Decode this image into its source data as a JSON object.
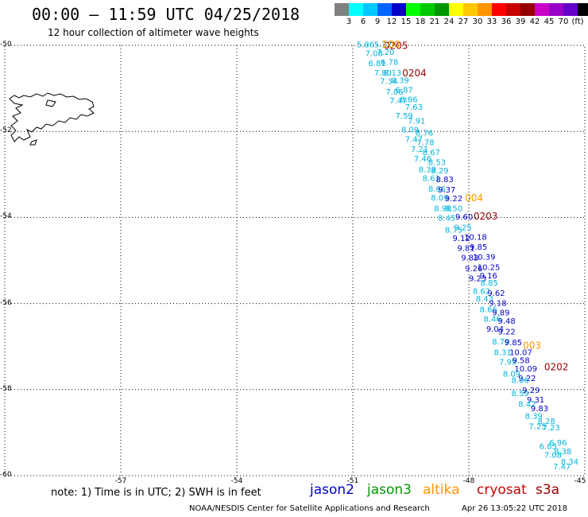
{
  "header": {
    "title": "00:00 – 11:59 UTC 04/25/2018",
    "subtitle": "12 hour collection of altimeter wave heights"
  },
  "legend": {
    "colors": [
      "#808080",
      "#00ffff",
      "#00c8ff",
      "#0064ff",
      "#0000c8",
      "#00ff00",
      "#00c800",
      "#009600",
      "#ffff00",
      "#ffc800",
      "#ff9600",
      "#ff0000",
      "#c80000",
      "#960000",
      "#c800c8",
      "#9600c8",
      "#6400c8",
      "#000000"
    ],
    "ticks": [
      "3",
      "6",
      "9",
      "12",
      "15",
      "18",
      "21",
      "24",
      "27",
      "30",
      "33",
      "36",
      "39",
      "42",
      "45",
      "70",
      "(ft)"
    ]
  },
  "axes": {
    "lat_labels": [
      "-50",
      "-52",
      "-54",
      "-56",
      "-58",
      "-60"
    ],
    "lon_labels": [
      "-57",
      "-54",
      "-51",
      "-48",
      "-45"
    ]
  },
  "map": {
    "lat_range": [
      -60,
      -50
    ],
    "lon_range": [
      -60,
      -45
    ],
    "gridlines": "dotted"
  },
  "observations": [
    {
      "t": "5.86",
      "lat": -50.05,
      "lon": -50.9,
      "c": "#00b4dc"
    },
    {
      "t": "5.32",
      "lat": -50.05,
      "lon": -50.45,
      "c": "#00b4dc"
    },
    {
      "t": "7.08",
      "lat": -50.25,
      "lon": -50.68,
      "c": "#00b4dc"
    },
    {
      "t": "7.20",
      "lat": -50.22,
      "lon": -50.38,
      "c": "#00b4dc"
    },
    {
      "t": "6.81",
      "lat": -50.48,
      "lon": -50.6,
      "c": "#00b4dc"
    },
    {
      "t": "6.78",
      "lat": -50.45,
      "lon": -50.28,
      "c": "#00b4dc"
    },
    {
      "t": "7.80",
      "lat": -50.7,
      "lon": -50.45,
      "c": "#00b4dc"
    },
    {
      "t": "8.13",
      "lat": -50.7,
      "lon": -50.2,
      "c": "#00b4dc"
    },
    {
      "t": "7.34",
      "lat": -50.9,
      "lon": -50.3,
      "c": "#00b4dc"
    },
    {
      "t": "8.39",
      "lat": -50.88,
      "lon": -50.0,
      "c": "#00b4dc"
    },
    {
      "t": "7.06",
      "lat": -51.15,
      "lon": -50.15,
      "c": "#00b4dc"
    },
    {
      "t": "6.87",
      "lat": -51.1,
      "lon": -49.9,
      "c": "#00b4dc"
    },
    {
      "t": "7.47",
      "lat": -51.35,
      "lon": -50.05,
      "c": "#00b4dc"
    },
    {
      "t": "6.86",
      "lat": -51.32,
      "lon": -49.78,
      "c": "#00b4dc"
    },
    {
      "t": "7.63",
      "lat": -51.5,
      "lon": -49.65,
      "c": "#00b4dc"
    },
    {
      "t": "7.59",
      "lat": -51.7,
      "lon": -49.9,
      "c": "#00b4dc"
    },
    {
      "t": "7.91",
      "lat": -51.82,
      "lon": -49.58,
      "c": "#00b4dc"
    },
    {
      "t": "8.09",
      "lat": -52.02,
      "lon": -49.75,
      "c": "#00b4dc"
    },
    {
      "t": "8.76",
      "lat": -52.1,
      "lon": -49.38,
      "c": "#00b4dc"
    },
    {
      "t": "7.47",
      "lat": -52.25,
      "lon": -49.65,
      "c": "#00b4dc"
    },
    {
      "t": "7.78",
      "lat": -52.32,
      "lon": -49.35,
      "c": "#00b4dc"
    },
    {
      "t": "7.21",
      "lat": -52.48,
      "lon": -49.5,
      "c": "#00b4dc"
    },
    {
      "t": "8.67",
      "lat": -52.55,
      "lon": -49.2,
      "c": "#00b4dc"
    },
    {
      "t": "7.46",
      "lat": -52.7,
      "lon": -49.42,
      "c": "#00b4dc"
    },
    {
      "t": "8.53",
      "lat": -52.78,
      "lon": -49.05,
      "c": "#00b4dc"
    },
    {
      "t": "8.39",
      "lat": -52.95,
      "lon": -49.3,
      "c": "#00b4dc"
    },
    {
      "t": "8.29",
      "lat": -52.98,
      "lon": -48.98,
      "c": "#00b4dc"
    },
    {
      "t": "8.61",
      "lat": -53.15,
      "lon": -49.2,
      "c": "#00b4dc"
    },
    {
      "t": "8.83",
      "lat": -53.18,
      "lon": -48.85,
      "c": "#0000c8"
    },
    {
      "t": "8.66",
      "lat": -53.4,
      "lon": -49.05,
      "c": "#00b4dc"
    },
    {
      "t": "9.37",
      "lat": -53.42,
      "lon": -48.8,
      "c": "#0000c8"
    },
    {
      "t": "8.09",
      "lat": -53.6,
      "lon": -48.98,
      "c": "#00b4dc"
    },
    {
      "t": "9.22",
      "lat": -53.62,
      "lon": -48.62,
      "c": "#0000c8"
    },
    {
      "t": "8.98",
      "lat": -53.85,
      "lon": -48.9,
      "c": "#00b4dc"
    },
    {
      "t": "8.50",
      "lat": -53.85,
      "lon": -48.62,
      "c": "#00b4dc"
    },
    {
      "t": "8.45",
      "lat": -54.08,
      "lon": -48.8,
      "c": "#00b4dc"
    },
    {
      "t": "9.60",
      "lat": -54.05,
      "lon": -48.35,
      "c": "#0000c8"
    },
    {
      "t": "8.75",
      "lat": -54.35,
      "lon": -48.62,
      "c": "#00b4dc"
    },
    {
      "t": "9.25",
      "lat": -54.3,
      "lon": -48.38,
      "c": "#00b4dc"
    },
    {
      "t": "9.12",
      "lat": -54.55,
      "lon": -48.42,
      "c": "#0000c8"
    },
    {
      "t": "10.18",
      "lat": -54.52,
      "lon": -48.12,
      "c": "#0000c8"
    },
    {
      "t": "9.81",
      "lat": -54.78,
      "lon": -48.3,
      "c": "#0000c8"
    },
    {
      "t": "9.85",
      "lat": -54.75,
      "lon": -47.98,
      "c": "#0000c8"
    },
    {
      "t": "9.83",
      "lat": -55.0,
      "lon": -48.2,
      "c": "#0000c8"
    },
    {
      "t": "10.39",
      "lat": -54.98,
      "lon": -47.9,
      "c": "#0000c8"
    },
    {
      "t": "9.26",
      "lat": -55.25,
      "lon": -48.1,
      "c": "#0000c8"
    },
    {
      "t": "10.25",
      "lat": -55.22,
      "lon": -47.78,
      "c": "#0000c8"
    },
    {
      "t": "9.23",
      "lat": -55.48,
      "lon": -48.0,
      "c": "#0000c8"
    },
    {
      "t": "9.16",
      "lat": -55.42,
      "lon": -47.72,
      "c": "#0000c8"
    },
    {
      "t": "8.85",
      "lat": -55.58,
      "lon": -47.7,
      "c": "#00b4dc"
    },
    {
      "t": "8.62",
      "lat": -55.78,
      "lon": -47.9,
      "c": "#00b4dc"
    },
    {
      "t": "9.62",
      "lat": -55.82,
      "lon": -47.52,
      "c": "#0000c8"
    },
    {
      "t": "8.43",
      "lat": -55.95,
      "lon": -47.82,
      "c": "#00b4dc"
    },
    {
      "t": "9.18",
      "lat": -56.05,
      "lon": -47.48,
      "c": "#0000c8"
    },
    {
      "t": "8.66",
      "lat": -56.2,
      "lon": -47.72,
      "c": "#00b4dc"
    },
    {
      "t": "9.89",
      "lat": -56.28,
      "lon": -47.4,
      "c": "#0000c8"
    },
    {
      "t": "8.46",
      "lat": -56.42,
      "lon": -47.62,
      "c": "#00b4dc"
    },
    {
      "t": "9.48",
      "lat": -56.47,
      "lon": -47.25,
      "c": "#0000c8"
    },
    {
      "t": "9.04",
      "lat": -56.65,
      "lon": -47.55,
      "c": "#0000c8"
    },
    {
      "t": "9.22",
      "lat": -56.72,
      "lon": -47.25,
      "c": "#0000c8"
    },
    {
      "t": "8.79",
      "lat": -56.95,
      "lon": -47.4,
      "c": "#00b4dc"
    },
    {
      "t": "9.85",
      "lat": -56.97,
      "lon": -47.08,
      "c": "#0000c8"
    },
    {
      "t": "8.31",
      "lat": -57.2,
      "lon": -47.35,
      "c": "#00b4dc"
    },
    {
      "t": "10.07",
      "lat": -57.2,
      "lon": -46.95,
      "c": "#0000c8"
    },
    {
      "t": "7.99",
      "lat": -57.42,
      "lon": -47.22,
      "c": "#00b4dc"
    },
    {
      "t": "9.58",
      "lat": -57.38,
      "lon": -46.88,
      "c": "#0000c8"
    },
    {
      "t": "10.09",
      "lat": -57.58,
      "lon": -46.82,
      "c": "#0000c8"
    },
    {
      "t": "8.09",
      "lat": -57.7,
      "lon": -47.12,
      "c": "#00b4dc"
    },
    {
      "t": "9.22",
      "lat": -57.8,
      "lon": -46.72,
      "c": "#0000c8"
    },
    {
      "t": "8.06",
      "lat": -57.85,
      "lon": -46.9,
      "c": "#00b4dc"
    },
    {
      "t": "8.59",
      "lat": -58.15,
      "lon": -46.9,
      "c": "#00b4dc"
    },
    {
      "t": "9.29",
      "lat": -58.08,
      "lon": -46.62,
      "c": "#0000c8"
    },
    {
      "t": "9.31",
      "lat": -58.3,
      "lon": -46.5,
      "c": "#0000c8"
    },
    {
      "t": "8.42",
      "lat": -58.4,
      "lon": -46.72,
      "c": "#00b4dc"
    },
    {
      "t": "9.83",
      "lat": -58.5,
      "lon": -46.4,
      "c": "#0000c8"
    },
    {
      "t": "8.39",
      "lat": -58.68,
      "lon": -46.55,
      "c": "#00b4dc"
    },
    {
      "t": "8.28",
      "lat": -58.8,
      "lon": -46.22,
      "c": "#00b4dc"
    },
    {
      "t": "7.25",
      "lat": -58.92,
      "lon": -46.45,
      "c": "#00b4dc"
    },
    {
      "t": "7.23",
      "lat": -58.95,
      "lon": -46.1,
      "c": "#00b4dc"
    },
    {
      "t": "6.96",
      "lat": -59.3,
      "lon": -45.92,
      "c": "#00b4dc"
    },
    {
      "t": "6.85",
      "lat": -59.38,
      "lon": -46.18,
      "c": "#00b4dc"
    },
    {
      "t": "8.38",
      "lat": -59.5,
      "lon": -45.8,
      "c": "#00b4dc"
    },
    {
      "t": "7.08",
      "lat": -59.58,
      "lon": -46.05,
      "c": "#00b4dc"
    },
    {
      "t": "8.34",
      "lat": -59.74,
      "lon": -45.62,
      "c": "#00b4dc"
    },
    {
      "t": "7.47",
      "lat": -59.85,
      "lon": -45.82,
      "c": "#00b4dc"
    }
  ],
  "time_labels": [
    {
      "t": "0205",
      "lat": -50.08,
      "lon": -50.2,
      "c": "#960000"
    },
    {
      "t": "0204",
      "lat": -50.72,
      "lon": -49.72,
      "c": "#960000"
    },
    {
      "t": "004",
      "lat": -53.62,
      "lon": -48.1,
      "c": "#ff9600"
    },
    {
      "t": "0203",
      "lat": -54.05,
      "lon": -47.88,
      "c": "#960000"
    },
    {
      "t": "003",
      "lat": -57.05,
      "lon": -46.6,
      "c": "#ff9600"
    },
    {
      "t": "0202",
      "lat": -57.55,
      "lon": -46.05,
      "c": "#960000"
    },
    {
      "t": "100",
      "lat": -50.06,
      "lon": -50.25,
      "c": "#ff9600"
    }
  ],
  "note": "note: 1) Time is in UTC; 2) SWH is in feet",
  "satellites": [
    {
      "name": "jason2",
      "color": "#0000c8"
    },
    {
      "name": "jason3",
      "color": "#009600"
    },
    {
      "name": "altika",
      "color": "#ff9600"
    },
    {
      "name": "cryosat",
      "color": "#c80000"
    },
    {
      "name": "s3a",
      "color": "#960000"
    }
  ],
  "footer": {
    "credit": "NOAA/NESDIS Center for Satellite Applications and Research",
    "timestamp": "Apr 26 13:05:22 UTC 2018"
  }
}
